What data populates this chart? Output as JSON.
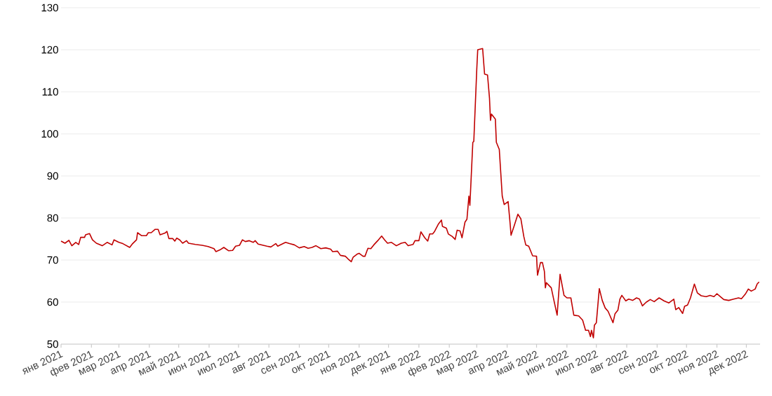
{
  "chart_data": {
    "type": "line",
    "grid": "y",
    "xlim": [
      "2021-01-01",
      "2022-12-15"
    ],
    "ylim": [
      50,
      130
    ],
    "yticks": [
      50,
      60,
      70,
      80,
      90,
      100,
      110,
      120,
      130
    ],
    "xticks": [
      {
        "value": "2021-01-01",
        "label": "янв 2021"
      },
      {
        "value": "2021-02-01",
        "label": "фев 2021"
      },
      {
        "value": "2021-03-01",
        "label": "мар 2021"
      },
      {
        "value": "2021-04-01",
        "label": "апр 2021"
      },
      {
        "value": "2021-05-01",
        "label": "май 2021"
      },
      {
        "value": "2021-06-01",
        "label": "июн 2021"
      },
      {
        "value": "2021-07-01",
        "label": "июл 2021"
      },
      {
        "value": "2021-08-01",
        "label": "авг 2021"
      },
      {
        "value": "2021-09-01",
        "label": "сен 2021"
      },
      {
        "value": "2021-10-01",
        "label": "окт 2021"
      },
      {
        "value": "2021-11-01",
        "label": "ноя 2021"
      },
      {
        "value": "2021-12-01",
        "label": "дек 2021"
      },
      {
        "value": "2022-01-01",
        "label": "янв 2022"
      },
      {
        "value": "2022-02-01",
        "label": "фев 2022"
      },
      {
        "value": "2022-03-01",
        "label": "мар 2022"
      },
      {
        "value": "2022-04-01",
        "label": "апр 2022"
      },
      {
        "value": "2022-05-01",
        "label": "май 2022"
      },
      {
        "value": "2022-06-01",
        "label": "июн 2022"
      },
      {
        "value": "2022-07-01",
        "label": "июл 2022"
      },
      {
        "value": "2022-08-01",
        "label": "авг 2022"
      },
      {
        "value": "2022-09-01",
        "label": "сен 2022"
      },
      {
        "value": "2022-10-01",
        "label": "окт 2022"
      },
      {
        "value": "2022-11-01",
        "label": "ноя 2022"
      },
      {
        "value": "2022-12-01",
        "label": "дек 2022"
      }
    ],
    "x": [
      "2021-01-01",
      "2021-01-05",
      "2021-01-09",
      "2021-01-12",
      "2021-01-16",
      "2021-01-19",
      "2021-01-21",
      "2021-01-25",
      "2021-01-26",
      "2021-01-30",
      "2021-02-02",
      "2021-02-06",
      "2021-02-12",
      "2021-02-17",
      "2021-02-22",
      "2021-02-24",
      "2021-03-01",
      "2021-03-05",
      "2021-03-12",
      "2021-03-15",
      "2021-03-19",
      "2021-03-20",
      "2021-03-24",
      "2021-03-29",
      "2021-03-31",
      "2021-04-03",
      "2021-04-07",
      "2021-04-10",
      "2021-04-12",
      "2021-04-17",
      "2021-04-19",
      "2021-04-21",
      "2021-04-25",
      "2021-04-27",
      "2021-04-29",
      "2021-05-02",
      "2021-05-05",
      "2021-05-09",
      "2021-05-11",
      "2021-05-18",
      "2021-05-25",
      "2021-05-31",
      "2021-06-06",
      "2021-06-08",
      "2021-06-12",
      "2021-06-16",
      "2021-06-21",
      "2021-06-25",
      "2021-06-28",
      "2021-07-02",
      "2021-07-05",
      "2021-07-08",
      "2021-07-12",
      "2021-07-16",
      "2021-07-18",
      "2021-07-21",
      "2021-07-30",
      "2021-08-03",
      "2021-08-08",
      "2021-08-10",
      "2021-08-18",
      "2021-08-22",
      "2021-08-27",
      "2021-09-01",
      "2021-09-06",
      "2021-09-10",
      "2021-09-14",
      "2021-09-18",
      "2021-09-23",
      "2021-09-28",
      "2021-10-03",
      "2021-10-05",
      "2021-10-10",
      "2021-10-13",
      "2021-10-18",
      "2021-10-21",
      "2021-10-24",
      "2021-10-26",
      "2021-10-30",
      "2021-11-01",
      "2021-11-05",
      "2021-11-07",
      "2021-11-10",
      "2021-11-13",
      "2021-11-16",
      "2021-11-20",
      "2021-11-24",
      "2021-11-27",
      "2021-11-30",
      "2021-12-04",
      "2021-12-09",
      "2021-12-14",
      "2021-12-18",
      "2021-12-21",
      "2021-12-26",
      "2021-12-28",
      "2022-01-01",
      "2022-01-03",
      "2022-01-07",
      "2022-01-10",
      "2022-01-12",
      "2022-01-15",
      "2022-01-17",
      "2022-01-21",
      "2022-01-24",
      "2022-01-25",
      "2022-01-29",
      "2022-01-31",
      "2022-02-04",
      "2022-02-07",
      "2022-02-09",
      "2022-02-12",
      "2022-02-14",
      "2022-02-17",
      "2022-02-19",
      "2022-02-21",
      "2022-02-22",
      "2022-02-25",
      "2022-02-26",
      "2022-03-01",
      "2022-03-02",
      "2022-03-07",
      "2022-03-09",
      "2022-03-12",
      "2022-03-14",
      "2022-03-15",
      "2022-03-16",
      "2022-03-20",
      "2022-03-21",
      "2022-03-24",
      "2022-03-27",
      "2022-03-29",
      "2022-04-02",
      "2022-04-04",
      "2022-04-05",
      "2022-04-08",
      "2022-04-12",
      "2022-04-15",
      "2022-04-18",
      "2022-04-20",
      "2022-04-23",
      "2022-04-27",
      "2022-05-01",
      "2022-05-02",
      "2022-05-05",
      "2022-05-07",
      "2022-05-09",
      "2022-05-10",
      "2022-05-11",
      "2022-05-16",
      "2022-05-19",
      "2022-05-22",
      "2022-05-25",
      "2022-05-29",
      "2022-06-01",
      "2022-06-05",
      "2022-06-08",
      "2022-06-13",
      "2022-06-17",
      "2022-06-20",
      "2022-06-23",
      "2022-06-25",
      "2022-06-26",
      "2022-06-28",
      "2022-06-29",
      "2022-07-01",
      "2022-07-04",
      "2022-07-07",
      "2022-07-10",
      "2022-07-13",
      "2022-07-15",
      "2022-07-18",
      "2022-07-20",
      "2022-07-23",
      "2022-07-25",
      "2022-07-27",
      "2022-07-31",
      "2022-08-03",
      "2022-08-07",
      "2022-08-11",
      "2022-08-14",
      "2022-08-17",
      "2022-08-21",
      "2022-08-25",
      "2022-08-29",
      "2022-09-03",
      "2022-09-08",
      "2022-09-13",
      "2022-09-18",
      "2022-09-20",
      "2022-09-23",
      "2022-09-27",
      "2022-09-29",
      "2022-10-02",
      "2022-10-05",
      "2022-10-09",
      "2022-10-12",
      "2022-10-16",
      "2022-10-21",
      "2022-10-25",
      "2022-10-29",
      "2022-11-01",
      "2022-11-05",
      "2022-11-08",
      "2022-11-13",
      "2022-11-18",
      "2022-11-23",
      "2022-11-26",
      "2022-11-30",
      "2022-12-03",
      "2022-12-06",
      "2022-12-10",
      "2022-12-12",
      "2022-12-14"
    ],
    "series": [
      {
        "color": "#c00000",
        "values": [
          74.5,
          74.0,
          74.7,
          73.4,
          74.2,
          73.7,
          75.4,
          75.4,
          76.0,
          76.3,
          74.8,
          74.0,
          73.4,
          74.2,
          73.6,
          74.8,
          74.2,
          73.9,
          73.0,
          73.9,
          74.8,
          76.5,
          75.8,
          75.8,
          76.5,
          76.5,
          77.3,
          77.3,
          76.0,
          76.4,
          76.8,
          75.1,
          75.1,
          74.5,
          75.2,
          74.8,
          74.0,
          74.6,
          74.0,
          73.7,
          73.5,
          73.2,
          72.7,
          72.0,
          72.4,
          73.0,
          72.2,
          72.3,
          73.3,
          73.5,
          74.8,
          74.4,
          74.6,
          74.2,
          74.6,
          73.8,
          73.3,
          73.1,
          73.9,
          73.3,
          74.2,
          73.9,
          73.6,
          72.9,
          73.2,
          72.8,
          73.0,
          73.4,
          72.7,
          72.9,
          72.6,
          72.0,
          72.1,
          71.1,
          70.9,
          70.2,
          69.6,
          70.7,
          71.4,
          71.6,
          70.9,
          70.9,
          72.8,
          72.7,
          73.6,
          74.6,
          75.7,
          74.8,
          74.0,
          74.2,
          73.4,
          74.0,
          74.2,
          73.4,
          73.7,
          74.6,
          74.6,
          76.7,
          75.3,
          74.5,
          76.2,
          76.2,
          76.8,
          78.6,
          79.5,
          78.0,
          77.6,
          76.2,
          75.6,
          74.9,
          77.1,
          76.9,
          75.3,
          79.0,
          79.7,
          85.2,
          83.0,
          98.0,
          98.2,
          115.2,
          120.0,
          120.3,
          114.2,
          114.0,
          108.5,
          103.2,
          104.7,
          103.5,
          98.0,
          96.3,
          85.2,
          83.2,
          83.9,
          78.8,
          75.9,
          78.0,
          80.9,
          79.8,
          75.6,
          73.6,
          73.3,
          71.0,
          70.9,
          66.4,
          69.4,
          69.4,
          67.3,
          63.4,
          64.6,
          63.4,
          60.1,
          56.9,
          66.6,
          61.6,
          61.0,
          61.0,
          56.9,
          56.7,
          55.7,
          53.3,
          53.3,
          51.8,
          53.3,
          51.5,
          54.5,
          55.1,
          63.2,
          60.4,
          58.6,
          57.8,
          56.7,
          55.1,
          57.2,
          58.1,
          60.7,
          61.6,
          60.3,
          60.7,
          60.4,
          61.0,
          60.7,
          59.1,
          60.0,
          60.6,
          60.1,
          61.0,
          60.3,
          59.8,
          60.7,
          58.2,
          58.7,
          57.3,
          59.0,
          59.3,
          61.0,
          64.3,
          62.2,
          61.5,
          61.3,
          61.6,
          61.3,
          62.0,
          61.2,
          60.6,
          60.4,
          60.7,
          61.0,
          60.8,
          61.9,
          63.1,
          62.6,
          63.1,
          64.3,
          64.8
        ]
      }
    ]
  }
}
